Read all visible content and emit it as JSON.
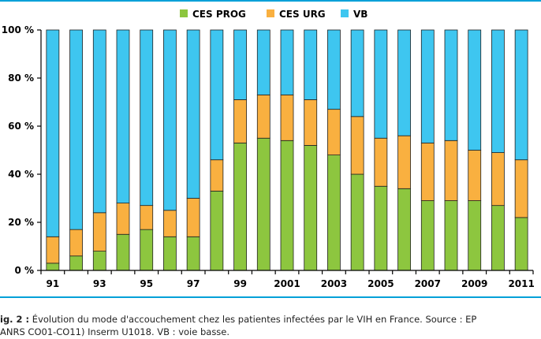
{
  "chart_data": {
    "type": "bar",
    "stacked": true,
    "normalized": true,
    "categories": [
      "91",
      "92",
      "93",
      "94",
      "95",
      "96",
      "97",
      "98",
      "99",
      "2000",
      "2001",
      "2002",
      "2003",
      "2004",
      "2005",
      "2006",
      "2007",
      "2008",
      "2009",
      "2010",
      "2011"
    ],
    "x_tick_labels": [
      "91",
      "93",
      "95",
      "97",
      "99",
      "2001",
      "2003",
      "2005",
      "2007",
      "2009",
      "2011"
    ],
    "y_ticks": [
      0,
      20,
      40,
      60,
      80,
      100
    ],
    "y_tick_labels": [
      "0 %",
      "20 %",
      "40 %",
      "60 %",
      "80 %",
      "100 %"
    ],
    "ylim": [
      0,
      100
    ],
    "grid": false,
    "legend_position": "top",
    "series": [
      {
        "name": "CES PROG",
        "color": "#8dc63f",
        "values": [
          3,
          6,
          8,
          15,
          17,
          14,
          14,
          33,
          53,
          55,
          54,
          52,
          48,
          40,
          35,
          34,
          29,
          29,
          29,
          27,
          22
        ]
      },
      {
        "name": "CES URG",
        "color": "#f9b040",
        "values": [
          11,
          11,
          16,
          13,
          10,
          11,
          16,
          13,
          18,
          18,
          19,
          19,
          19,
          24,
          20,
          22,
          24,
          25,
          21,
          22,
          24
        ]
      },
      {
        "name": "VB",
        "color": "#3ec6f0",
        "values": [
          86,
          83,
          76,
          72,
          73,
          75,
          70,
          54,
          29,
          27,
          27,
          29,
          33,
          36,
          45,
          44,
          47,
          46,
          50,
          51,
          54
        ]
      }
    ]
  },
  "caption": {
    "label": "ig. 2 :",
    "line1": " Évolution du mode d'accouchement chez les patientes infectées par le VIH en France. Source : EP",
    "line2": "ANRS CO01-CO11) Inserm U1018. VB : voie basse."
  }
}
